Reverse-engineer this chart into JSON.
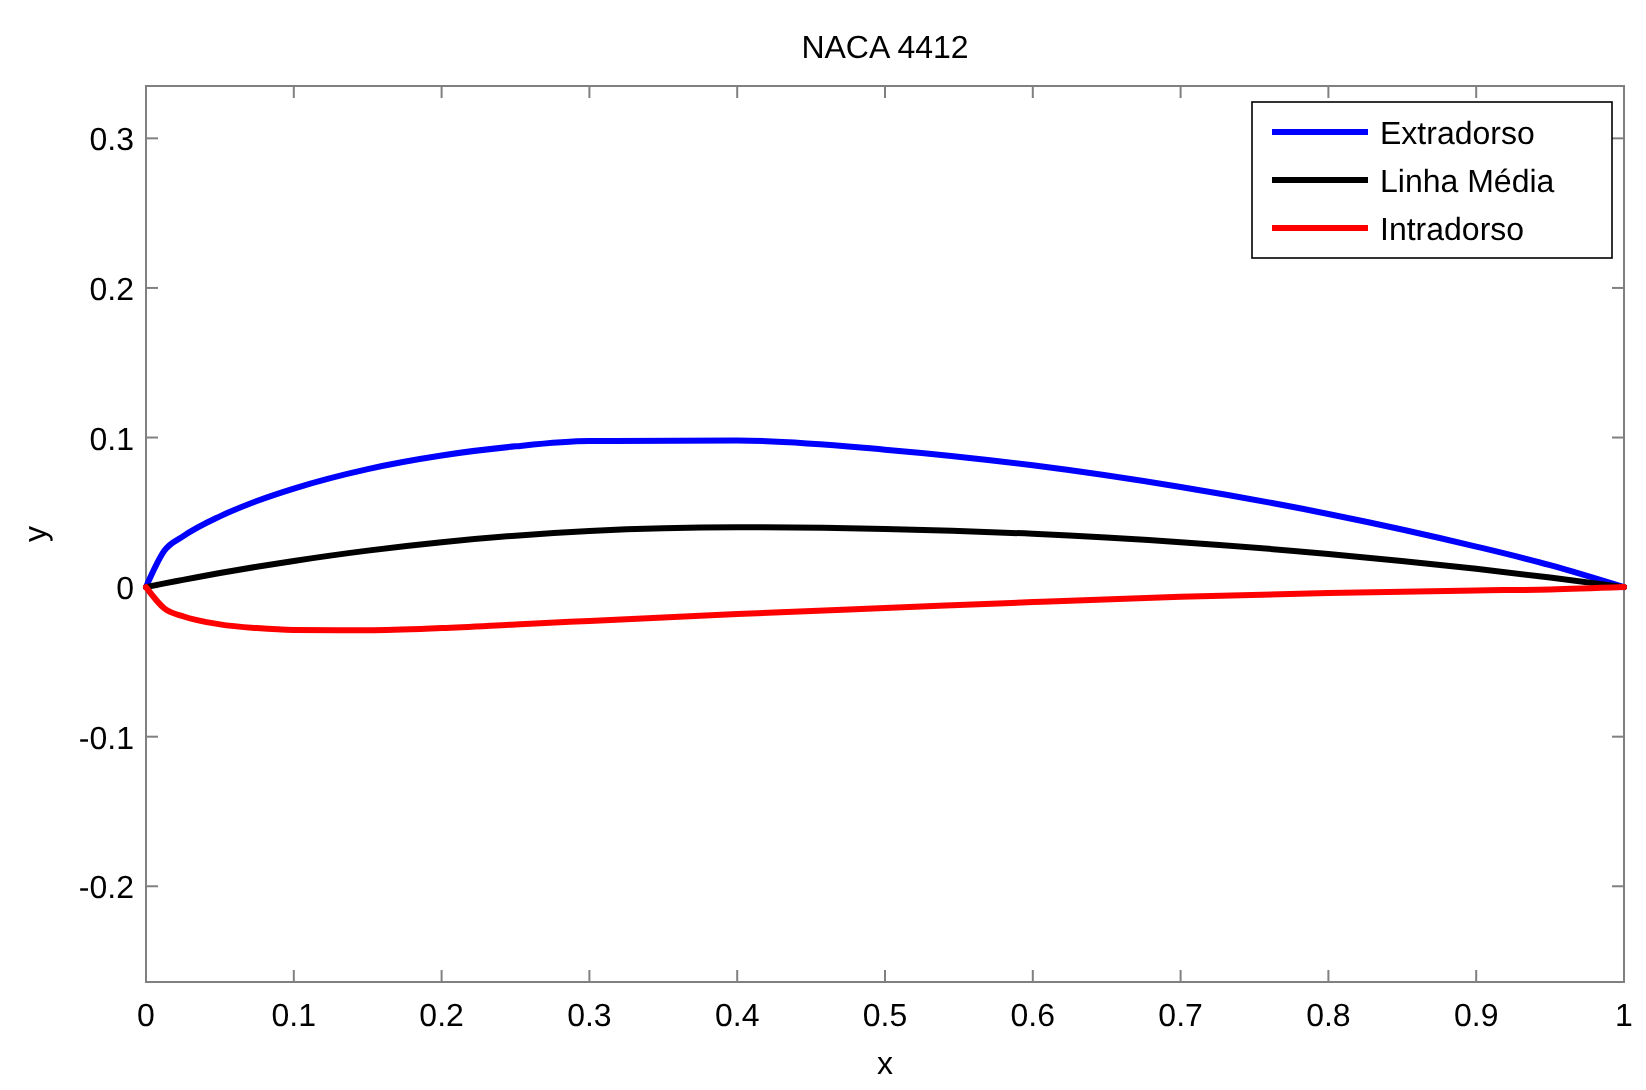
{
  "chart_data": {
    "type": "line",
    "title": "NACA 4412",
    "xlabel": "x",
    "ylabel": "y",
    "x": [
      0,
      0.0125,
      0.025,
      0.05,
      0.075,
      0.1,
      0.15,
      0.2,
      0.25,
      0.3,
      0.4,
      0.5,
      0.6,
      0.7,
      0.8,
      0.9,
      0.95,
      1
    ],
    "series": [
      {
        "name": "Extradorso",
        "color": "#0000ff",
        "values": [
          0,
          0.0244,
          0.0339,
          0.0473,
          0.0576,
          0.0659,
          0.0789,
          0.088,
          0.0941,
          0.0976,
          0.098,
          0.0919,
          0.0814,
          0.0669,
          0.0489,
          0.0271,
          0.0147,
          0
        ]
      },
      {
        "name": "Linha Média",
        "color": "#000000",
        "values": [
          0,
          0.0025,
          0.0048,
          0.0094,
          0.0136,
          0.0175,
          0.0244,
          0.03,
          0.0344,
          0.0375,
          0.04,
          0.0389,
          0.0356,
          0.03,
          0.0222,
          0.0122,
          0.0064,
          0
        ]
      },
      {
        "name": "Intradorso",
        "color": "#ff0000",
        "values": [
          0,
          -0.0143,
          -0.0195,
          -0.0249,
          -0.0274,
          -0.0286,
          -0.0288,
          -0.0274,
          -0.025,
          -0.0226,
          -0.018,
          -0.014,
          -0.01,
          -0.0065,
          -0.0039,
          -0.0022,
          -0.0016,
          0
        ]
      }
    ],
    "xlim": [
      0,
      1
    ],
    "xticks": [
      0,
      0.1,
      0.2,
      0.3,
      0.4,
      0.5,
      0.6,
      0.7,
      0.8,
      0.9,
      1
    ],
    "ylim": [
      -0.264,
      0.335
    ],
    "yticks": [
      -0.2,
      -0.1,
      0,
      0.1,
      0.2,
      0.3
    ],
    "grid": false,
    "legend": "top right",
    "line_style": "solid",
    "marker": "none"
  }
}
